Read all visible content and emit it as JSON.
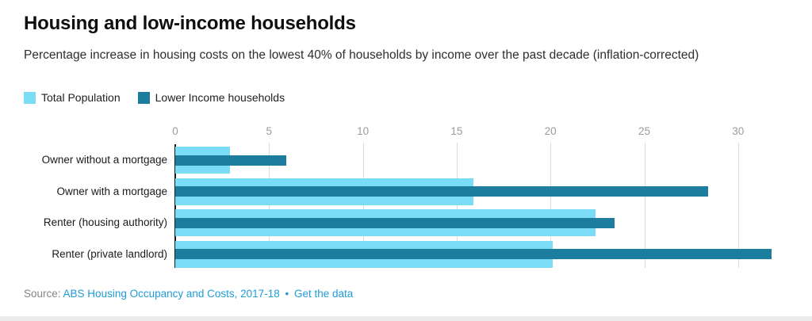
{
  "title": "Housing and low-income households",
  "subtitle": "Percentage increase in housing costs on the lowest 40% of households by income over the past decade (inflation-corrected)",
  "colors": {
    "total_population": "#7bdcf5",
    "lower_income": "#1d7d9e",
    "link_blue": "#1e9cd8",
    "gridline": "#dcdcdc",
    "axis_line": "#1a1a1a"
  },
  "legend": [
    {
      "label": "Total Population",
      "color": "#7bdcf5"
    },
    {
      "label": "Lower Income households",
      "color": "#1d7d9e"
    }
  ],
  "chart_data": {
    "type": "bar",
    "orientation": "horizontal",
    "title": "Housing and low-income households",
    "xlabel": "",
    "ylabel": "",
    "categories": [
      "Owner without a mortgage",
      "Owner with a mortgage",
      "Renter (housing authority)",
      "Renter (private landlord)"
    ],
    "series": [
      {
        "name": "Total Population",
        "color": "#7bdcf5",
        "values": [
          2.9,
          15.9,
          22.4,
          20.1
        ]
      },
      {
        "name": "Lower Income households",
        "color": "#1d7d9e",
        "values": [
          5.9,
          28.4,
          23.4,
          31.8
        ]
      }
    ],
    "xticks": [
      0,
      5,
      10,
      15,
      20,
      25,
      30
    ],
    "xlim": [
      0,
      33.4
    ],
    "grid": true,
    "legend_position": "top-left"
  },
  "footer": {
    "source_prefix": "Source:",
    "source_link": "ABS Housing Occupancy and Costs, 2017-18",
    "separator": "•",
    "get_data_link": "Get the data"
  }
}
